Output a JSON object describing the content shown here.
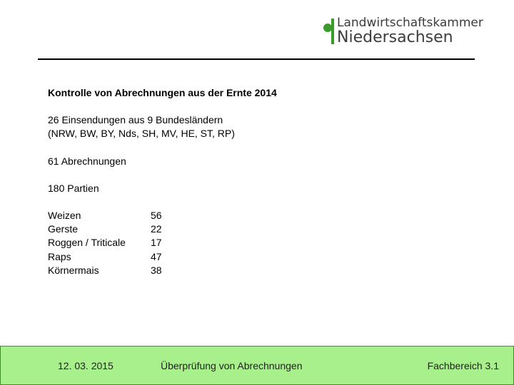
{
  "logo": {
    "line1": "Landwirtschaftskammer",
    "line2": "Niedersachsen"
  },
  "content": {
    "title": "Kontrolle von Abrechnungen aus der Ernte 2014",
    "lines": [
      "26 Einsendungen aus 9 Bundesländern",
      "(NRW, BW, BY, Nds, SH, MV, HE, ST, RP)",
      "61 Abrechnungen",
      "180 Partien"
    ],
    "table": {
      "rows": [
        [
          "Weizen",
          56
        ],
        [
          "Gerste",
          22
        ],
        [
          "Roggen / Triticale",
          17
        ],
        [
          "Raps",
          47
        ],
        [
          "Körnermais",
          38
        ]
      ]
    }
  },
  "footer": {
    "date": "12. 03. 2015",
    "title": "Überprüfung von Abrechnungen",
    "section": "Fachbereich 3.1"
  }
}
